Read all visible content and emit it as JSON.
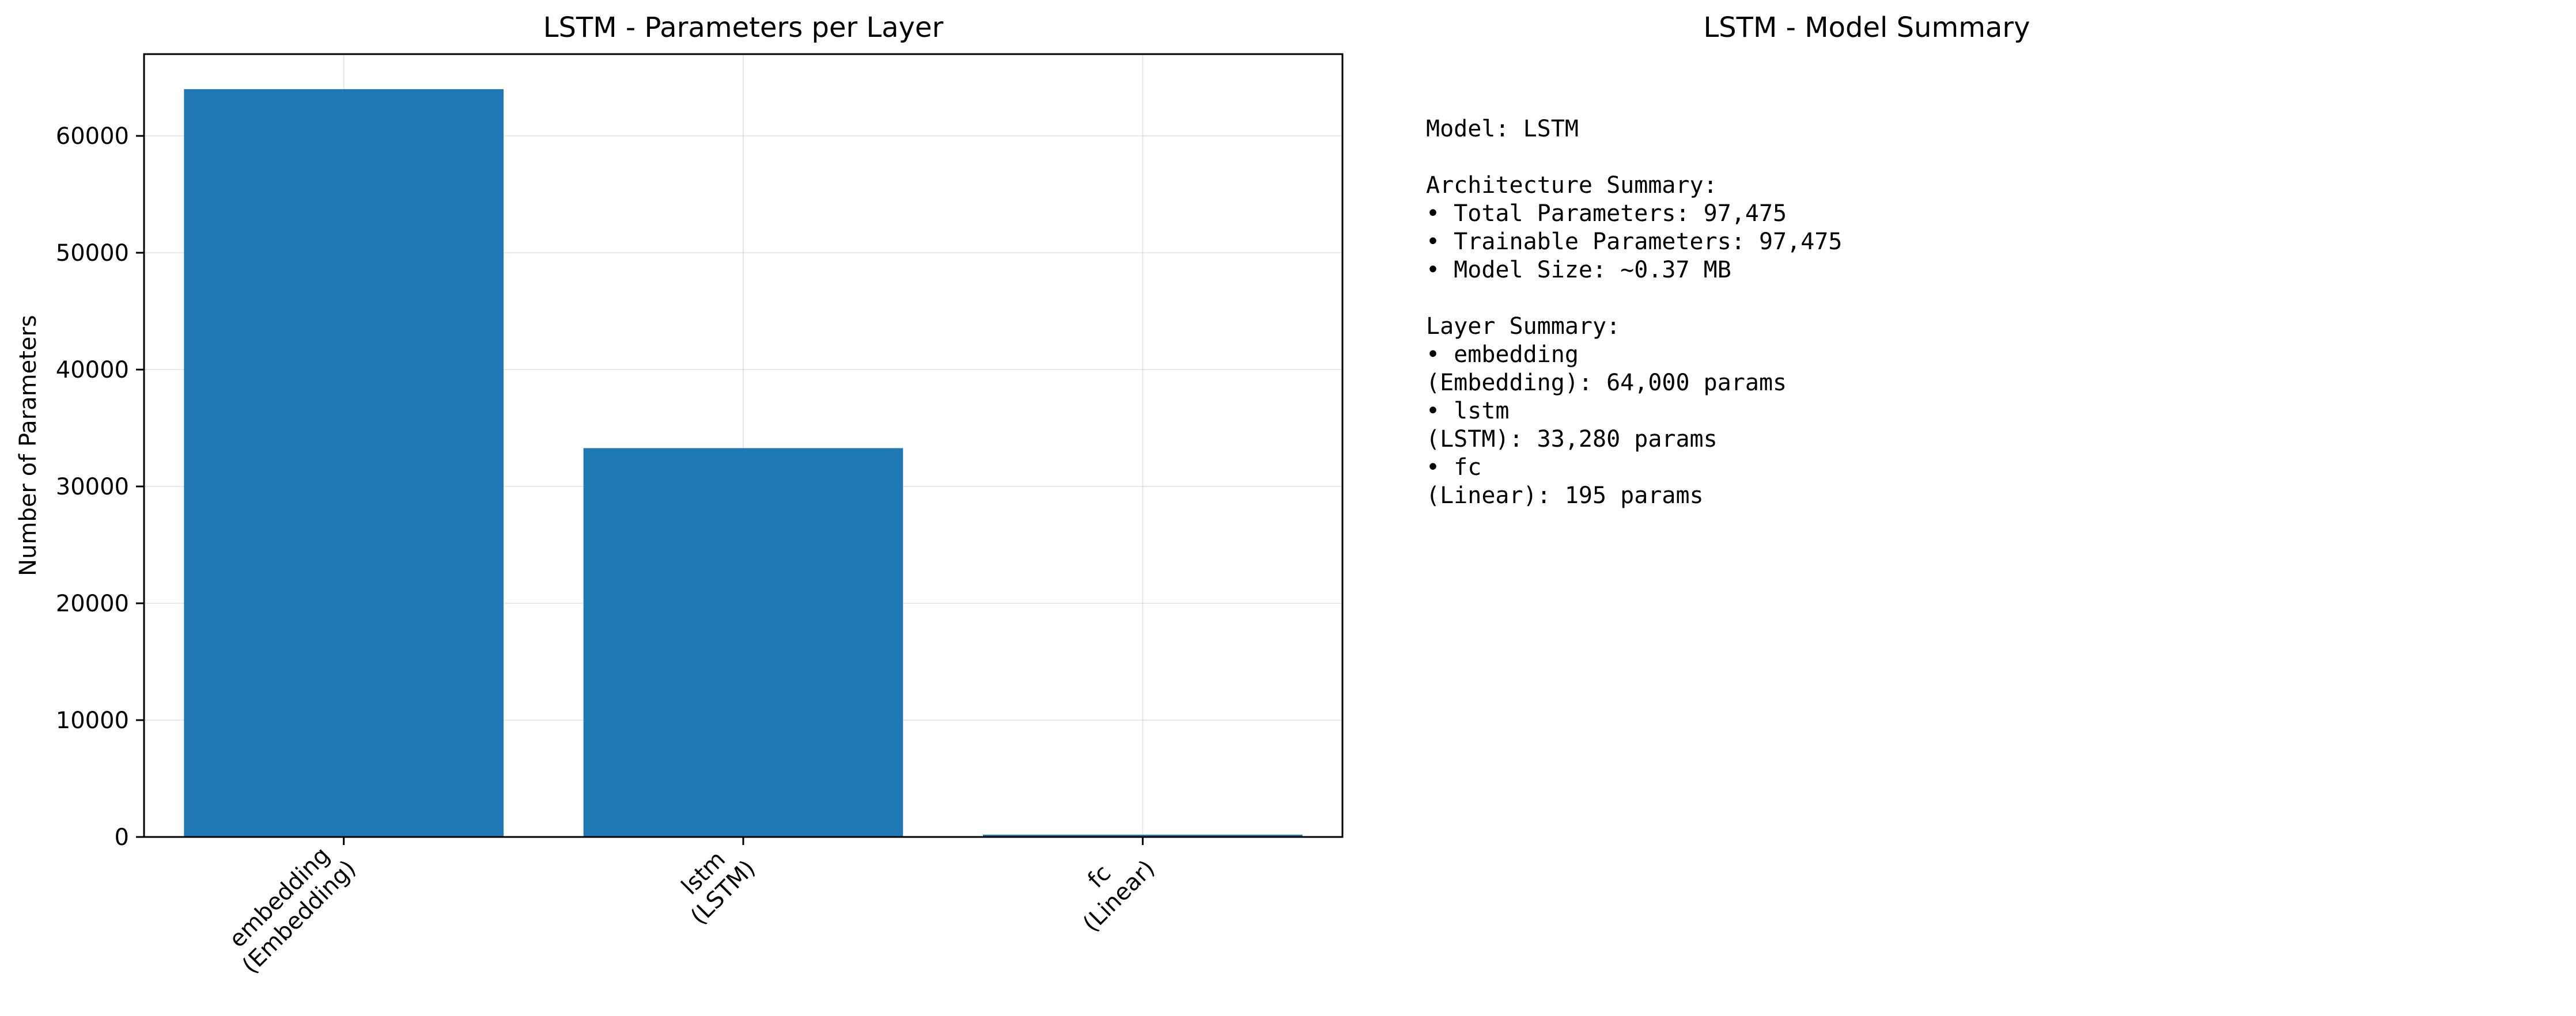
{
  "chart_data": [
    {
      "type": "bar",
      "title": "LSTM - Parameters per Layer",
      "xlabel": "",
      "ylabel": "Number of Parameters",
      "categories": [
        "embedding\n(Embedding)",
        "lstm\n(LSTM)",
        "fc\n(Linear)"
      ],
      "values": [
        64000,
        33280,
        195
      ],
      "ylim": [
        0,
        67000
      ],
      "yticks": [
        0,
        10000,
        20000,
        30000,
        40000,
        50000,
        60000
      ],
      "grid": true,
      "color": "#1f77b4"
    }
  ],
  "summary": {
    "title": "LSTM - Model Summary",
    "lines": [
      "Model: LSTM",
      "",
      "Architecture Summary:",
      "• Total Parameters: 97,475",
      "• Trainable Parameters: 97,475",
      "• Model Size: ~0.37 MB",
      "",
      "Layer Summary:",
      "• embedding",
      "(Embedding): 64,000 params",
      "• lstm",
      "(LSTM): 33,280 params",
      "• fc",
      "(Linear): 195 params"
    ]
  }
}
